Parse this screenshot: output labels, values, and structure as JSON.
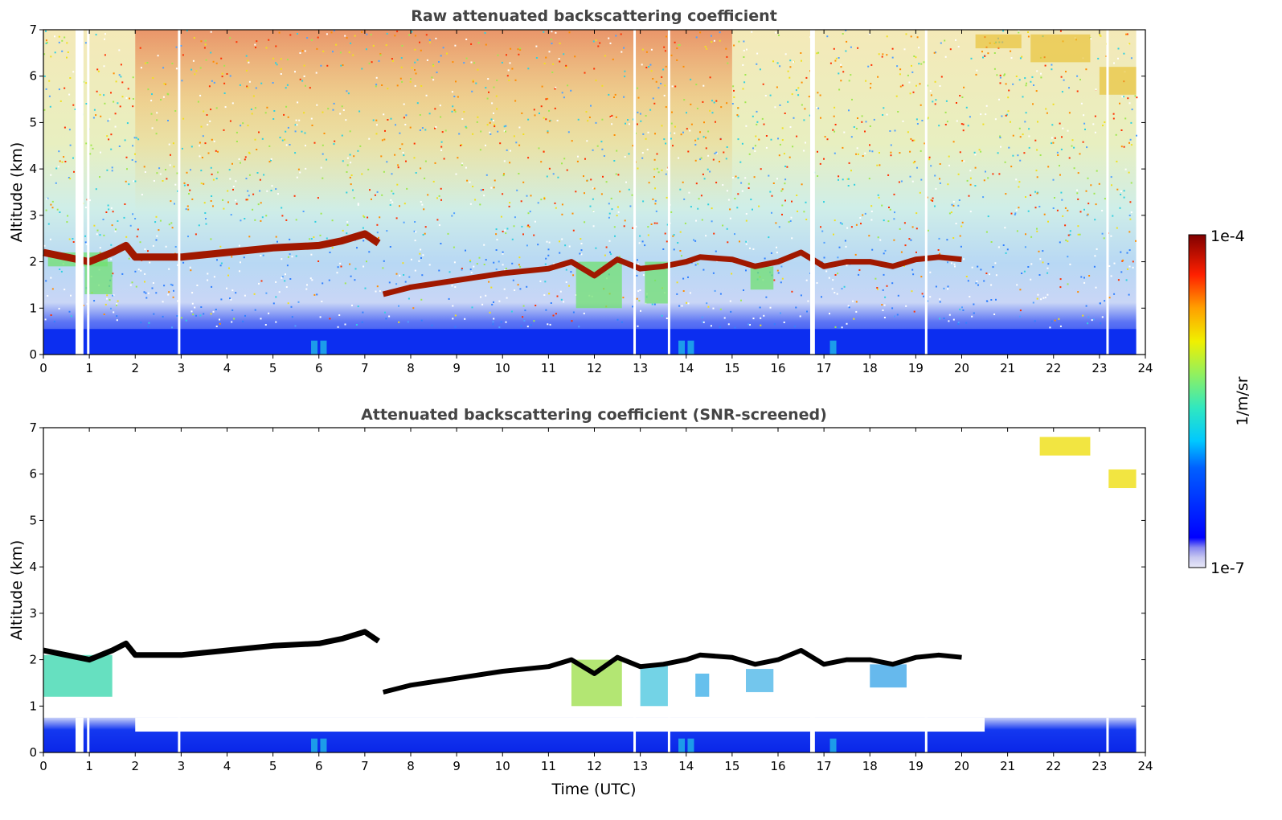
{
  "chart_data": [
    {
      "type": "heatmap",
      "title": "Raw attenuated backscattering coefficient",
      "xlabel": "",
      "ylabel": "Altitude (km)",
      "xlim": [
        0,
        24
      ],
      "ylim": [
        0,
        7
      ],
      "xticks": [
        "0",
        "1",
        "2",
        "3",
        "4",
        "5",
        "6",
        "7",
        "8",
        "9",
        "10",
        "11",
        "12",
        "13",
        "14",
        "15",
        "16",
        "17",
        "18",
        "19",
        "20",
        "21",
        "22",
        "23",
        "24"
      ],
      "yticks": [
        "0",
        "1",
        "2",
        "3",
        "4",
        "5",
        "6",
        "7"
      ],
      "data_end_time": 23.8,
      "missing_data_times": [
        0.7,
        0.82,
        0.95,
        2.93,
        12.85,
        13.6,
        16.7,
        16.75,
        19.2,
        23.15
      ],
      "cloud_layer": {
        "description_times": [
          0.0,
          0.5,
          1.0,
          1.5,
          1.8,
          2.0,
          2.5,
          3.0,
          3.5,
          4.0,
          5.0,
          6.0,
          6.5,
          7.0,
          7.3
        ],
        "altitude_km": [
          2.2,
          2.1,
          2.0,
          2.2,
          2.35,
          2.1,
          2.1,
          2.1,
          2.15,
          2.2,
          2.3,
          2.35,
          2.45,
          2.6,
          2.4
        ]
      },
      "lower_cloud_layer": {
        "times": [
          7.4,
          8.0,
          9.0,
          10.0,
          11.0,
          11.5,
          12.0,
          12.5,
          13.0,
          13.5,
          14.0,
          14.3,
          15.0,
          15.5,
          16.0,
          16.5,
          17.0,
          17.5,
          18.0,
          18.5,
          19.0,
          19.5,
          20.0
        ],
        "altitude_km": [
          1.3,
          1.45,
          1.6,
          1.75,
          1.85,
          2.0,
          1.7,
          2.05,
          1.85,
          1.9,
          2.0,
          2.1,
          2.05,
          1.9,
          2.0,
          2.2,
          1.9,
          2.0,
          2.0,
          1.9,
          2.05,
          2.1,
          2.05
        ]
      },
      "cirrus": [
        {
          "times": [
            20.3,
            21.3
          ],
          "altitude_km": [
            6.6,
            6.9
          ]
        },
        {
          "times": [
            21.5,
            22.8
          ],
          "altitude_km": [
            6.3,
            6.9
          ]
        },
        {
          "times": [
            23.0,
            23.8
          ],
          "altitude_km": [
            5.6,
            6.2
          ]
        }
      ],
      "colorbar": {
        "min_label": "1e-7",
        "max_label": "1e-4",
        "label": "1/m/sr",
        "colormap": "jet",
        "scale": "log"
      }
    },
    {
      "type": "heatmap",
      "title": "Attenuated backscattering coefficient (SNR-screened)",
      "xlabel": "Time (UTC)",
      "ylabel": "Altitude (km)",
      "xlim": [
        0,
        24
      ],
      "ylim": [
        0,
        7
      ],
      "xticks": [
        "0",
        "1",
        "2",
        "3",
        "4",
        "5",
        "6",
        "7",
        "8",
        "9",
        "10",
        "11",
        "12",
        "13",
        "14",
        "15",
        "16",
        "17",
        "18",
        "19",
        "20",
        "21",
        "22",
        "23",
        "24"
      ],
      "yticks": [
        "0",
        "1",
        "2",
        "3",
        "4",
        "5",
        "6",
        "7"
      ],
      "data_end_time": 23.8,
      "note_colors": {
        "cloud_top": "#000000"
      }
    }
  ],
  "colors": {
    "title": "#444444",
    "jet_low": "#00008f",
    "jet_high": "#7f0000"
  }
}
